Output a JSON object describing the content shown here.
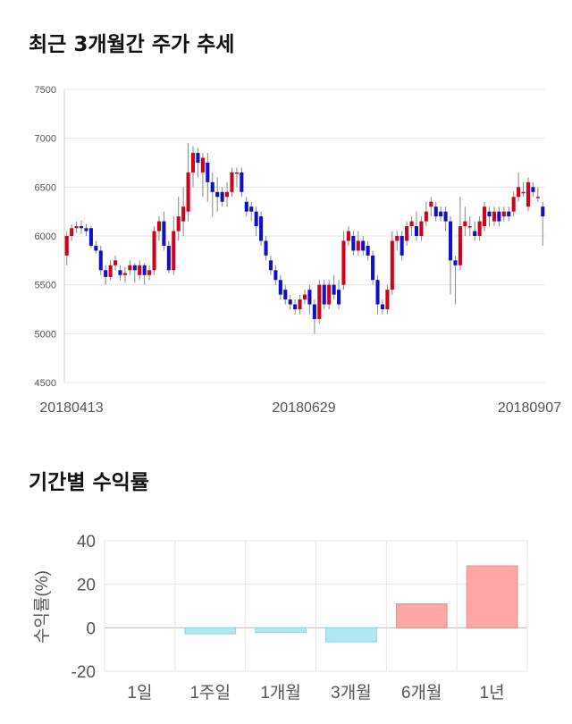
{
  "section1": {
    "title": "최근 3개월간 주가 추세"
  },
  "section2": {
    "title": "기간별 수익률"
  },
  "colors": {
    "up": "#d0021b",
    "down": "#1010c8",
    "positive_bar": "#ffa6a6",
    "negative_bar": "#aee9f3",
    "grid": "#e6e6e6"
  },
  "chart_data": [
    {
      "type": "candlestick",
      "title": "최근 3개월간 주가 추세",
      "ylim": [
        4500,
        7500
      ],
      "y_ticks": [
        "7500",
        "7000",
        "6500",
        "6000",
        "5500",
        "5000",
        "4500"
      ],
      "x_ticks": [
        "20180413",
        "20180629",
        "20180907"
      ],
      "grid": true,
      "note": "approximate daily OHLC read from chart",
      "candles": [
        [
          5800,
          6000,
          5700,
          6050
        ],
        [
          6000,
          6080,
          5950,
          6120
        ],
        [
          6080,
          6100,
          6030,
          6150
        ],
        [
          6100,
          6080,
          6020,
          6160
        ],
        [
          6080,
          6050,
          6000,
          6120
        ],
        [
          6080,
          5900,
          5880,
          6100
        ],
        [
          5900,
          5850,
          5820,
          5950
        ],
        [
          5850,
          5650,
          5600,
          5900
        ],
        [
          5650,
          5580,
          5500,
          5700
        ],
        [
          5580,
          5700,
          5550,
          5750
        ],
        [
          5700,
          5750,
          5650,
          5800
        ],
        [
          5650,
          5600,
          5550,
          5700
        ],
        [
          5600,
          5620,
          5520,
          5680
        ],
        [
          5650,
          5700,
          5600,
          5750
        ],
        [
          5700,
          5650,
          5520,
          5720
        ],
        [
          5600,
          5700,
          5550,
          5750
        ],
        [
          5700,
          5600,
          5500,
          5720
        ],
        [
          5600,
          5650,
          5550,
          5700
        ],
        [
          5650,
          6050,
          5600,
          6100
        ],
        [
          6050,
          6150,
          5950,
          6200
        ],
        [
          6150,
          5900,
          5850,
          6250
        ],
        [
          5900,
          5650,
          5620,
          5950
        ],
        [
          5650,
          6050,
          5600,
          6200
        ],
        [
          6050,
          6200,
          5950,
          6400
        ],
        [
          6150,
          6300,
          6000,
          6500
        ],
        [
          6250,
          6650,
          6150,
          6950
        ],
        [
          6650,
          6850,
          6500,
          6920
        ],
        [
          6850,
          6750,
          6600,
          6900
        ],
        [
          6650,
          6800,
          6400,
          6850
        ],
        [
          6750,
          6550,
          6350,
          6850
        ],
        [
          6550,
          6450,
          6200,
          6650
        ],
        [
          6450,
          6400,
          6250,
          6600
        ],
        [
          6450,
          6350,
          6300,
          6500
        ],
        [
          6400,
          6450,
          6300,
          6550
        ],
        [
          6450,
          6650,
          6400,
          6700
        ],
        [
          6650,
          6650,
          6500,
          6700
        ],
        [
          6650,
          6450,
          6400,
          6700
        ],
        [
          6350,
          6250,
          6200,
          6400
        ],
        [
          6300,
          6250,
          6150,
          6350
        ],
        [
          6250,
          6100,
          6000,
          6300
        ],
        [
          6200,
          5950,
          5900,
          6250
        ],
        [
          5950,
          5800,
          5750,
          6000
        ],
        [
          5750,
          5650,
          5600,
          5800
        ],
        [
          5650,
          5550,
          5500,
          5700
        ],
        [
          5550,
          5400,
          5350,
          5600
        ],
        [
          5450,
          5350,
          5300,
          5500
        ],
        [
          5350,
          5300,
          5250,
          5400
        ],
        [
          5300,
          5250,
          5200,
          5350
        ],
        [
          5250,
          5350,
          5200,
          5400
        ],
        [
          5350,
          5400,
          5300,
          5450
        ],
        [
          5450,
          5300,
          5200,
          5500
        ],
        [
          5300,
          5150,
          5000,
          5350
        ],
        [
          5150,
          5500,
          5100,
          5550
        ],
        [
          5500,
          5300,
          5250,
          5550
        ],
        [
          5300,
          5500,
          5250,
          5550
        ],
        [
          5500,
          5400,
          5350,
          5600
        ],
        [
          5450,
          5300,
          5250,
          5550
        ],
        [
          5500,
          5950,
          5450,
          6050
        ],
        [
          5950,
          6050,
          5900,
          6100
        ],
        [
          6000,
          5850,
          5800,
          6050
        ],
        [
          5850,
          5950,
          5800,
          6050
        ],
        [
          5950,
          5850,
          5800,
          6000
        ],
        [
          5900,
          5800,
          5750,
          5950
        ],
        [
          5800,
          5550,
          5500,
          5850
        ],
        [
          5550,
          5300,
          5200,
          5600
        ],
        [
          5300,
          5250,
          5200,
          5350
        ],
        [
          5250,
          5450,
          5200,
          5500
        ],
        [
          5450,
          5950,
          5400,
          6050
        ],
        [
          5950,
          6000,
          5850,
          6050
        ],
        [
          6000,
          5800,
          5750,
          6050
        ],
        [
          5950,
          6100,
          5900,
          6150
        ],
        [
          6100,
          6150,
          6000,
          6200
        ],
        [
          6100,
          6000,
          5950,
          6250
        ],
        [
          6000,
          6150,
          5950,
          6200
        ],
        [
          6150,
          6250,
          6100,
          6350
        ],
        [
          6300,
          6350,
          6200,
          6400
        ],
        [
          6300,
          6200,
          6150,
          6350
        ],
        [
          6250,
          6200,
          6150,
          6300
        ],
        [
          6250,
          6150,
          6050,
          6300
        ],
        [
          6150,
          5750,
          5400,
          6200
        ],
        [
          5750,
          5700,
          5300,
          5800
        ],
        [
          5700,
          6100,
          5650,
          6400
        ],
        [
          6100,
          6150,
          6000,
          6300
        ],
        [
          6100,
          6100,
          6000,
          6200
        ],
        [
          6050,
          6000,
          5950,
          6150
        ],
        [
          6000,
          6150,
          5950,
          6200
        ],
        [
          6100,
          6300,
          6050,
          6350
        ],
        [
          6250,
          6200,
          6100,
          6300
        ],
        [
          6150,
          6250,
          6100,
          6300
        ],
        [
          6250,
          6150,
          6100,
          6300
        ],
        [
          6200,
          6250,
          6150,
          6300
        ],
        [
          6250,
          6200,
          6150,
          6300
        ],
        [
          6250,
          6400,
          6200,
          6450
        ],
        [
          6400,
          6500,
          6350,
          6650
        ],
        [
          6450,
          6450,
          6400,
          6550
        ],
        [
          6300,
          6550,
          6250,
          6600
        ],
        [
          6500,
          6450,
          6400,
          6550
        ],
        [
          6400,
          6400,
          6350,
          6500
        ],
        [
          6300,
          6200,
          5900,
          6350
        ]
      ]
    },
    {
      "type": "bar",
      "title": "기간별 수익률",
      "ylabel": "수익률(%)",
      "ylim": [
        -20,
        40
      ],
      "y_ticks": [
        40,
        20,
        0,
        -20
      ],
      "categories": [
        "1일",
        "1주일",
        "1개월",
        "3개월",
        "6개월",
        "1년"
      ],
      "values": [
        0,
        -2.8,
        -2.2,
        -6.5,
        11.0,
        28.5
      ],
      "grid": true
    }
  ]
}
